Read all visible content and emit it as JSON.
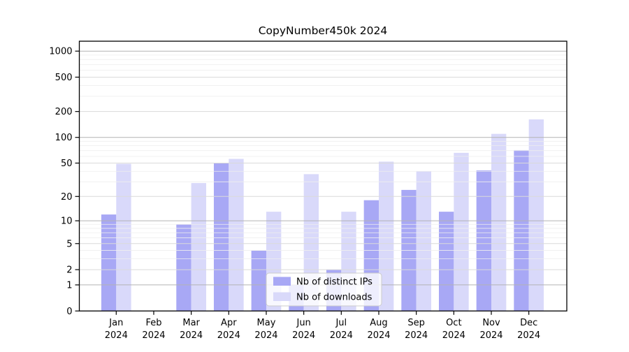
{
  "title": "CopyNumber450k 2024",
  "chart_data": {
    "type": "bar",
    "title": "CopyNumber450k 2024",
    "categories": [
      "Jan",
      "Feb",
      "Mar",
      "Apr",
      "May",
      "Jun",
      "Jul",
      "Aug",
      "Sep",
      "Oct",
      "Nov",
      "Dec"
    ],
    "x_tick_second_line": "2024",
    "series": [
      {
        "name": "Nb of distinct IPs",
        "color": "#a8a8f5",
        "values": [
          12,
          0,
          9,
          50,
          4,
          1,
          2,
          18,
          24,
          13,
          41,
          71
        ]
      },
      {
        "name": "Nb of downloads",
        "color": "#d9d9fa",
        "values": [
          49,
          0,
          29,
          56,
          13,
          37,
          13,
          52,
          40,
          66,
          110,
          162
        ]
      }
    ],
    "y_scale": "log10(value+1)",
    "y_ticks": [
      "0",
      "1",
      "2",
      "5",
      "10",
      "20",
      "50",
      "100",
      "200",
      "500",
      "1000"
    ],
    "ylim": [
      0,
      1300
    ],
    "xlabel": "",
    "ylabel": "",
    "grid": "horizontal, drawn over bars",
    "grid_major_values": [
      1,
      10,
      100,
      1000
    ],
    "grid_mid_values": [
      2,
      5,
      20,
      50,
      200,
      500
    ],
    "grid_minor_values": [
      3,
      4,
      6,
      7,
      8,
      9,
      30,
      40,
      60,
      70,
      80,
      90,
      300,
      400,
      600,
      700,
      800,
      900
    ],
    "legend_position": "lower center"
  },
  "colors": {
    "background": "#ffffff",
    "frame": "#000000",
    "grid_major": "#b3b3b3",
    "grid_mid": "#dadada",
    "grid_minor": "#eeeeee",
    "legend_border": "#cccccc",
    "legend_bg": "#ffffff"
  }
}
